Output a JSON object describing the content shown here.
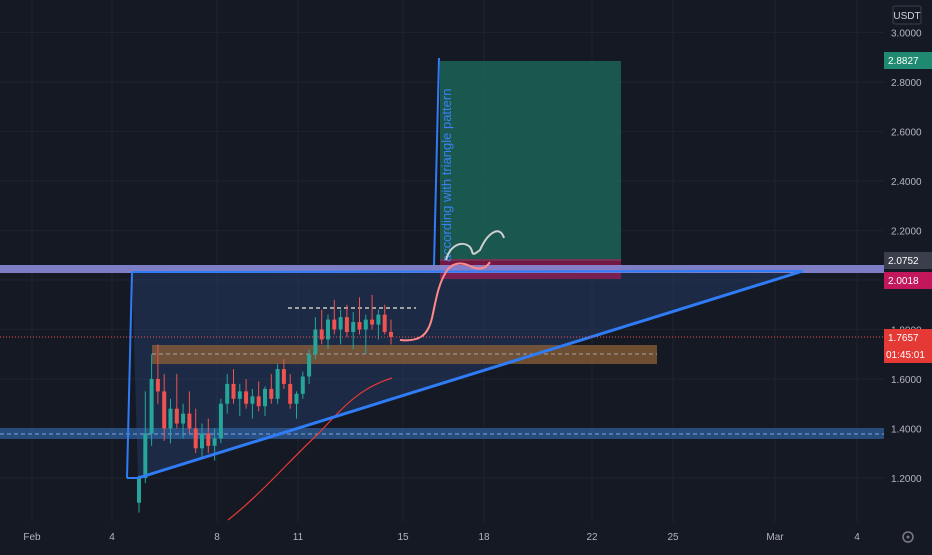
{
  "header": {
    "currency_label": "USDT"
  },
  "chart_data": {
    "type": "candlestick",
    "symbol_currency": "USDT",
    "ylim": [
      1.06,
      3.09
    ],
    "y_ticks": [
      "1.2000",
      "1.4000",
      "1.6000",
      "1.8000",
      "2.0000",
      "2.2000",
      "2.4000",
      "2.6000",
      "2.8000",
      "3.0000"
    ],
    "x_ticks": [
      "Feb",
      "4",
      "8",
      "11",
      "15",
      "18",
      "22",
      "25",
      "Mar",
      "4"
    ],
    "price_labels": {
      "target": "2.8827",
      "level_upper": "2.0752",
      "level_lower": "2.0018",
      "last_price": "1.7657",
      "countdown": "01:45:01"
    },
    "annotation_text": "according with triangle pattern",
    "colors": {
      "background": "#151924",
      "up_candle": "#26a69a",
      "down_candle": "#ef5350",
      "trendline": "#2f7cf6",
      "resistance_band": "#8a8ad8",
      "support_band": "#2e5d9a",
      "target_box": "#1b6c5d",
      "entry_band": "#8b6035",
      "ma_line": "#e53935",
      "projection": "#ff8a8a"
    }
  }
}
